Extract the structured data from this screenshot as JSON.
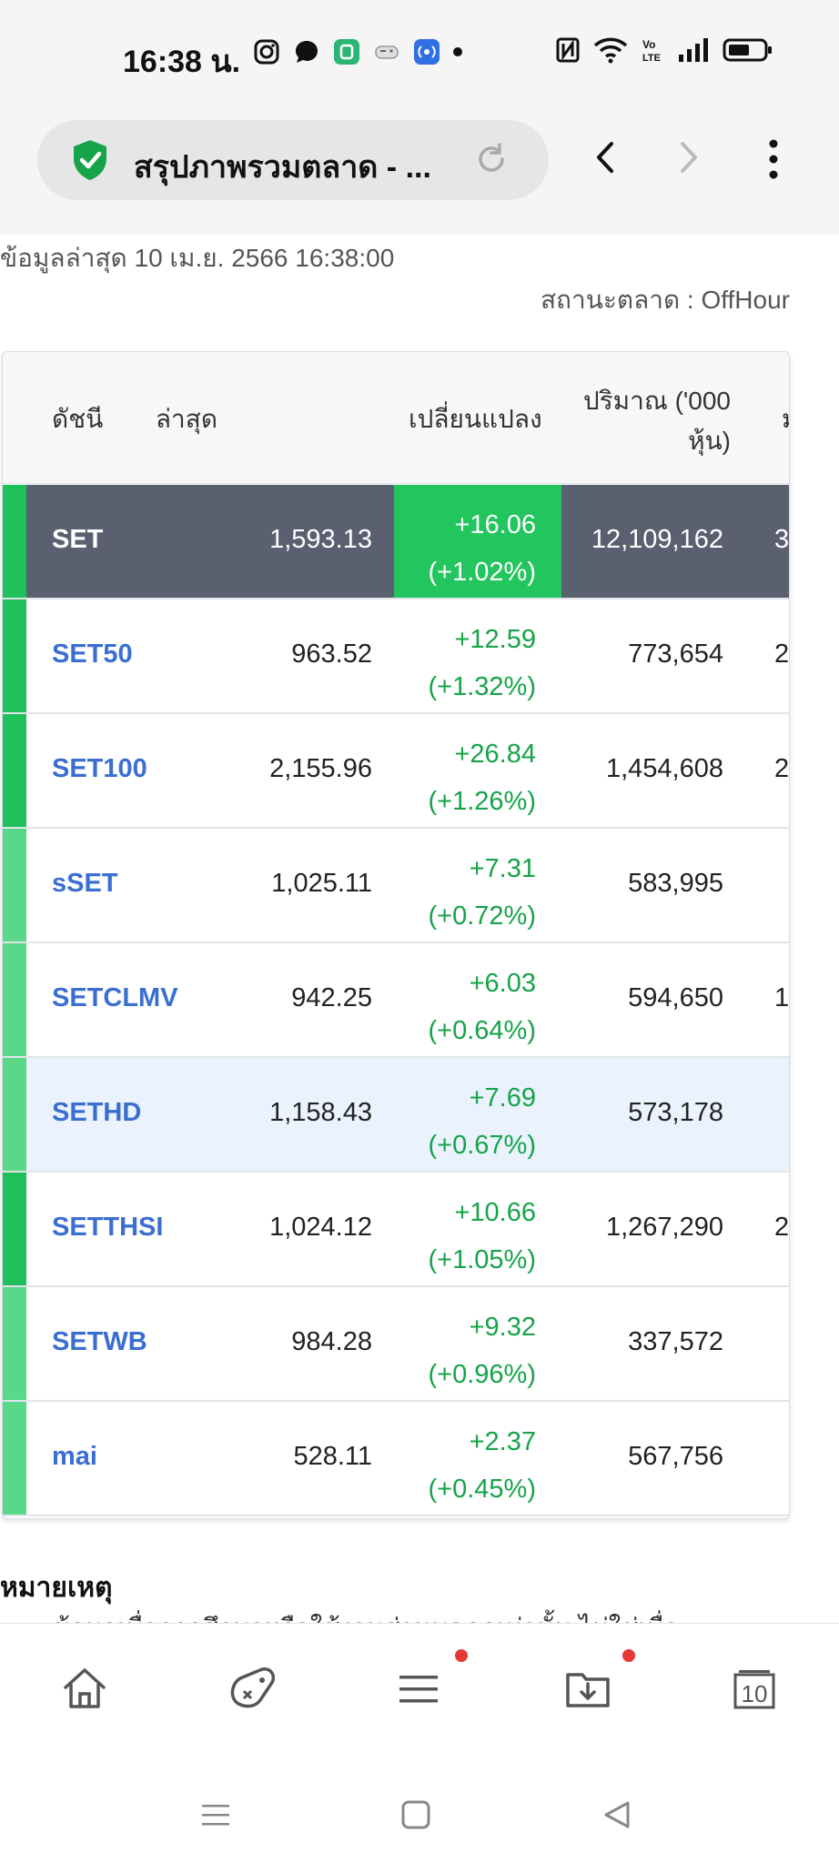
{
  "status_bar": {
    "time": "16:38 น.",
    "icons": [
      "instagram-icon",
      "chat-bubble-icon",
      "app-store-icon",
      "gamepad-icon",
      "radio-icon",
      "nfc-icon",
      "wifi-icon",
      "volte-icon",
      "signal-icon",
      "battery-icon"
    ]
  },
  "browser": {
    "page_title": "สรุปภาพรวมตลาด - ...",
    "secure": true
  },
  "page": {
    "updated_text": "ข้อมูลล่าสุด 10 เม.ย. 2566 16:38:00",
    "market_status": "สถานะตลาด : OffHour"
  },
  "table": {
    "headers": {
      "name": "ดัชนี",
      "last": "ล่าสุด",
      "change": "เปลี่ยนแปลง",
      "volume": "ปริมาณ ('000 หุ้น)",
      "more": "ม"
    },
    "rows": [
      {
        "name": "SET",
        "last": "1,593.13",
        "change": "+16.06",
        "pct": "(+1.02%)",
        "volume": "12,109,162",
        "more": "3"
      },
      {
        "name": "SET50",
        "last": "963.52",
        "change": "+12.59",
        "pct": "(+1.32%)",
        "volume": "773,654",
        "more": "2"
      },
      {
        "name": "SET100",
        "last": "2,155.96",
        "change": "+26.84",
        "pct": "(+1.26%)",
        "volume": "1,454,608",
        "more": "2"
      },
      {
        "name": "sSET",
        "last": "1,025.11",
        "change": "+7.31",
        "pct": "(+0.72%)",
        "volume": "583,995",
        "more": ""
      },
      {
        "name": "SETCLMV",
        "last": "942.25",
        "change": "+6.03",
        "pct": "(+0.64%)",
        "volume": "594,650",
        "more": "1"
      },
      {
        "name": "SETHD",
        "last": "1,158.43",
        "change": "+7.69",
        "pct": "(+0.67%)",
        "volume": "573,178",
        "more": ""
      },
      {
        "name": "SETTHSI",
        "last": "1,024.12",
        "change": "+10.66",
        "pct": "(+1.05%)",
        "volume": "1,267,290",
        "more": "2"
      },
      {
        "name": "SETWB",
        "last": "984.28",
        "change": "+9.32",
        "pct": "(+0.96%)",
        "volume": "337,572",
        "more": ""
      },
      {
        "name": "mai",
        "last": "528.11",
        "change": "+2.37",
        "pct": "(+0.45%)",
        "volume": "567,756",
        "more": ""
      }
    ]
  },
  "notes": {
    "title": "หมายเหตุ",
    "first_line": "• ข้อมูลเพื่อการศึกษาหรือใช้งานส่วนบุคคลเท่านั้น ไม่ใช่เพื่อ"
  },
  "bottom_nav": {
    "tabs_count": "10",
    "items": [
      "home-icon",
      "game-icon",
      "menu-icon",
      "downloads-icon",
      "tabs-icon"
    ]
  },
  "colors": {
    "accent_link": "#3a6ed0",
    "positive": "#16a34a",
    "highlight_green": "#22c55e",
    "dark_row": "#5a6070"
  }
}
